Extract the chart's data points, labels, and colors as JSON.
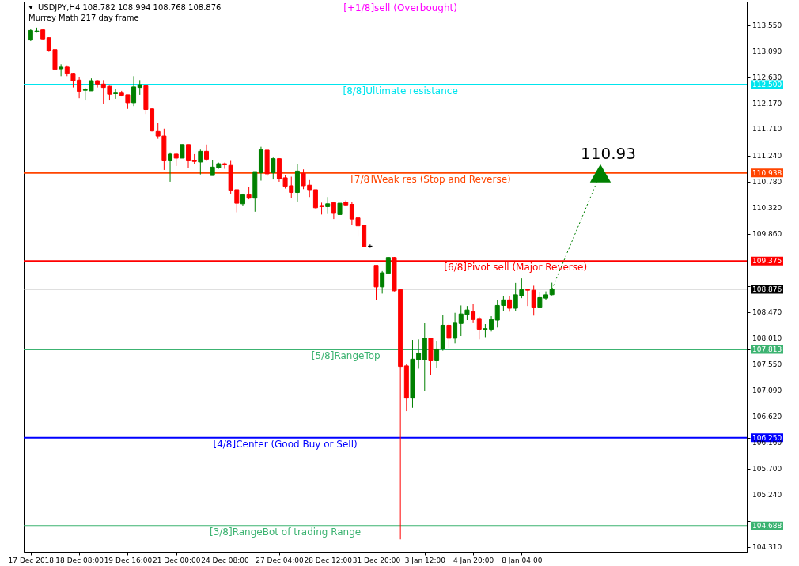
{
  "chart_data": {
    "type": "candlestick",
    "title": "USDJPY,H4  108.782 108.994 108.768 108.876",
    "subtitle": "Murrey Math 217 day frame",
    "categories": [
      "17 Dec 2018",
      null,
      null,
      null,
      null,
      null,
      null,
      null,
      "18 Dec 08:00",
      null,
      null,
      null,
      null,
      null,
      null,
      null,
      "19 Dec 16:00",
      null,
      null,
      null,
      null,
      null,
      null,
      null,
      "21 Dec 00:00",
      null,
      null,
      null,
      null,
      null,
      null,
      null,
      "24 Dec 08:00",
      null,
      null,
      null,
      null,
      null,
      null,
      null,
      null,
      "27 Dec 04:00",
      null,
      null,
      null,
      null,
      null,
      null,
      null,
      "28 Dec 12:00",
      null,
      null,
      null,
      null,
      null,
      null,
      null,
      "31 Dec 20:00",
      null,
      null,
      null,
      null,
      null,
      null,
      null,
      "3 Jan 12:00",
      null,
      null,
      null,
      null,
      null,
      null,
      null,
      "4 Jan 20:00",
      null,
      null,
      null,
      null,
      null,
      null,
      null,
      "8 Jan 04:00",
      null,
      null,
      null,
      null,
      null,
      null,
      null,
      null,
      null,
      null,
      null,
      null,
      null,
      null,
      null,
      null,
      null,
      null,
      null,
      null,
      null,
      null,
      null,
      null,
      null,
      null,
      null,
      null,
      null,
      null,
      null,
      null,
      null,
      null,
      null,
      null
    ],
    "ohlc": [
      [
        113.29,
        113.48,
        113.27,
        113.46
      ],
      [
        113.44,
        113.51,
        113.42,
        113.45
      ],
      [
        113.47,
        113.48,
        113.3,
        113.31
      ],
      [
        113.33,
        113.34,
        113.08,
        113.1
      ],
      [
        113.12,
        113.13,
        112.76,
        112.77
      ],
      [
        112.78,
        112.86,
        112.65,
        112.81
      ],
      [
        112.81,
        112.84,
        112.65,
        112.7
      ],
      [
        112.7,
        112.71,
        112.45,
        112.57
      ],
      [
        112.58,
        112.64,
        112.26,
        112.38
      ],
      [
        112.4,
        112.44,
        112.22,
        112.41
      ],
      [
        112.39,
        112.61,
        112.39,
        112.57
      ],
      [
        112.57,
        112.58,
        112.45,
        112.51
      ],
      [
        112.51,
        112.58,
        112.16,
        112.45
      ],
      [
        112.47,
        112.48,
        112.22,
        112.33
      ],
      [
        112.34,
        112.43,
        112.25,
        112.35
      ],
      [
        112.35,
        112.39,
        112.29,
        112.31
      ],
      [
        112.32,
        112.32,
        112.07,
        112.18
      ],
      [
        112.18,
        112.65,
        112.12,
        112.46
      ],
      [
        112.45,
        112.58,
        112.32,
        112.5
      ],
      [
        112.48,
        112.48,
        111.98,
        112.06
      ],
      [
        112.07,
        112.08,
        111.67,
        111.68
      ],
      [
        111.67,
        111.82,
        111.54,
        111.59
      ],
      [
        111.59,
        111.72,
        110.99,
        111.15
      ],
      [
        111.15,
        111.3,
        110.78,
        111.27
      ],
      [
        111.27,
        111.3,
        111.06,
        111.2
      ],
      [
        111.2,
        111.44,
        111.2,
        111.44
      ],
      [
        111.44,
        111.44,
        111.02,
        111.15
      ],
      [
        111.16,
        111.27,
        111.1,
        111.14
      ],
      [
        111.13,
        111.35,
        110.91,
        111.32
      ],
      [
        111.32,
        111.44,
        111.15,
        111.18
      ],
      [
        110.89,
        111.17,
        110.89,
        111.04
      ],
      [
        111.03,
        111.12,
        111.01,
        111.1
      ],
      [
        111.1,
        111.12,
        111.01,
        111.08
      ],
      [
        111.07,
        111.15,
        110.57,
        110.63
      ],
      [
        110.64,
        110.64,
        110.24,
        110.4
      ],
      [
        110.39,
        110.57,
        110.35,
        110.55
      ],
      [
        110.55,
        110.69,
        110.47,
        110.49
      ],
      [
        110.49,
        110.96,
        110.25,
        110.96
      ],
      [
        110.94,
        111.4,
        110.8,
        111.35
      ],
      [
        111.34,
        111.34,
        110.88,
        110.92
      ],
      [
        110.94,
        111.21,
        110.82,
        111.19
      ],
      [
        111.19,
        111.2,
        110.78,
        110.83
      ],
      [
        110.85,
        110.9,
        110.66,
        110.7
      ],
      [
        110.71,
        110.87,
        110.49,
        110.59
      ],
      [
        110.59,
        111.09,
        110.43,
        110.97
      ],
      [
        110.93,
        111.0,
        110.65,
        110.71
      ],
      [
        110.72,
        110.81,
        110.51,
        110.64
      ],
      [
        110.64,
        110.64,
        110.31,
        110.32
      ],
      [
        110.36,
        110.41,
        110.2,
        110.34
      ],
      [
        110.34,
        110.51,
        110.21,
        110.39
      ],
      [
        110.41,
        110.42,
        110.12,
        110.22
      ],
      [
        110.2,
        110.4,
        110.2,
        110.4
      ],
      [
        110.42,
        110.45,
        110.35,
        110.37
      ],
      [
        110.38,
        110.42,
        110.01,
        110.12
      ],
      [
        110.14,
        110.15,
        109.81,
        110.0
      ],
      [
        110.01,
        110.01,
        109.62,
        109.63
      ],
      [
        109.64,
        109.67,
        109.61,
        109.64
      ],
      [
        109.3,
        109.3,
        108.69,
        108.92
      ],
      [
        108.92,
        109.2,
        108.8,
        109.17
      ],
      [
        109.16,
        109.45,
        109.15,
        109.44
      ],
      [
        109.44,
        109.45,
        108.84,
        108.85
      ],
      [
        108.87,
        108.87,
        104.45,
        107.51
      ],
      [
        107.52,
        107.55,
        106.72,
        106.95
      ],
      [
        106.95,
        107.98,
        106.78,
        107.64
      ],
      [
        107.63,
        107.99,
        107.47,
        107.75
      ],
      [
        107.63,
        108.28,
        107.08,
        108.01
      ],
      [
        108.01,
        108.01,
        107.36,
        107.61
      ],
      [
        107.61,
        107.96,
        107.49,
        107.82
      ],
      [
        107.82,
        108.42,
        107.79,
        108.24
      ],
      [
        108.24,
        108.27,
        107.84,
        108.01
      ],
      [
        108.01,
        108.46,
        107.92,
        108.29
      ],
      [
        108.27,
        108.59,
        108.05,
        108.44
      ],
      [
        108.43,
        108.58,
        108.33,
        108.51
      ],
      [
        108.48,
        108.62,
        108.29,
        108.34
      ],
      [
        108.36,
        108.39,
        107.99,
        108.17
      ],
      [
        108.17,
        108.26,
        108.03,
        108.18
      ],
      [
        108.17,
        108.4,
        108.13,
        108.34
      ],
      [
        108.33,
        108.68,
        108.2,
        108.59
      ],
      [
        108.59,
        108.75,
        108.49,
        108.69
      ],
      [
        108.69,
        108.76,
        108.48,
        108.54
      ],
      [
        108.54,
        108.99,
        108.49,
        108.78
      ],
      [
        108.76,
        109.07,
        108.72,
        108.87
      ],
      [
        108.87,
        108.89,
        108.58,
        108.86
      ],
      [
        108.86,
        108.94,
        108.41,
        108.56
      ],
      [
        108.56,
        108.82,
        108.54,
        108.73
      ],
      [
        108.72,
        108.84,
        108.69,
        108.78
      ],
      [
        108.782,
        108.994,
        108.768,
        108.876
      ],
      null,
      null,
      null,
      null,
      null,
      null,
      null,
      null,
      null,
      null,
      null,
      null,
      null,
      null,
      null,
      null,
      null,
      null,
      null,
      null,
      null,
      null,
      null,
      null,
      null,
      null,
      null,
      null,
      null,
      null,
      null
    ],
    "colors": [
      "#008000",
      "#008000",
      "#ff0000",
      "#ff0000",
      "#ff0000",
      "#008000",
      "#ff0000",
      "#ff0000",
      "#ff0000",
      "#008000",
      "#008000",
      "#ff0000",
      "#ff0000",
      "#ff0000",
      "#008000",
      "#ff0000",
      "#ff0000",
      "#008000",
      "#008000",
      "#ff0000",
      "#ff0000",
      "#ff0000",
      "#ff0000",
      "#008000",
      "#ff0000",
      "#008000",
      "#ff0000",
      "#ff0000",
      "#008000",
      "#ff0000",
      "#008000",
      "#008000",
      "#ff0000",
      "#ff0000",
      "#ff0000",
      "#008000",
      "#ff0000",
      "#008000",
      "#008000",
      "#ff0000",
      "#008000",
      "#ff0000",
      "#ff0000",
      "#ff0000",
      "#008000",
      "#ff0000",
      "#ff0000",
      "#ff0000",
      "#ff0000",
      "#008000",
      "#ff0000",
      "#008000",
      "#ff0000",
      "#ff0000",
      "#ff0000",
      "#ff0000",
      "#000000",
      "#ff0000",
      "#008000",
      "#008000",
      "#ff0000",
      "#ff0000",
      "#ff0000",
      "#008000",
      "#008000",
      "#008000",
      "#ff0000",
      "#008000",
      "#008000",
      "#ff0000",
      "#008000",
      "#008000",
      "#008000",
      "#ff0000",
      "#ff0000",
      "#008000",
      "#008000",
      "#008000",
      "#008000",
      "#ff0000",
      "#008000",
      "#008000",
      "#ff0000",
      "#ff0000",
      "#008000",
      "#008000",
      "#008000",
      null,
      null,
      null,
      null,
      null,
      null,
      null,
      null,
      null,
      null,
      null,
      null,
      null,
      null,
      null,
      null,
      null,
      null,
      null,
      null,
      null,
      null,
      null,
      null,
      null,
      null,
      null,
      null,
      null,
      null,
      null
    ],
    "series": [
      {
        "type": "line",
        "color": "#008000",
        "line_style": "dotted",
        "values": [
          null,
          null,
          null,
          null,
          null,
          null,
          null,
          null,
          null,
          null,
          null,
          null,
          null,
          null,
          null,
          null,
          null,
          null,
          null,
          null,
          null,
          null,
          null,
          null,
          null,
          null,
          null,
          null,
          null,
          null,
          null,
          null,
          null,
          null,
          null,
          null,
          null,
          null,
          null,
          null,
          null,
          null,
          null,
          null,
          null,
          null,
          null,
          null,
          null,
          null,
          null,
          null,
          null,
          null,
          null,
          null,
          null,
          null,
          null,
          null,
          null,
          null,
          null,
          null,
          null,
          null,
          null,
          null,
          null,
          null,
          null,
          null,
          null,
          null,
          null,
          null,
          null,
          null,
          null,
          null,
          null,
          null,
          null,
          null,
          null,
          null,
          108.876,
          null,
          null,
          null,
          null,
          null,
          null,
          null,
          110.93,
          null,
          null,
          null,
          null,
          null,
          null,
          null,
          null,
          null,
          null,
          null,
          null,
          null,
          null,
          null,
          null,
          null,
          null,
          null,
          null,
          null,
          null,
          null
        ]
      }
    ],
    "ylim": [
      104.23,
      113.97
    ],
    "yticks": [
      {
        "value": 113.55,
        "label": "113.550"
      },
      {
        "value": 113.09,
        "label": "113.090"
      },
      {
        "value": 112.63,
        "label": "112.630"
      },
      {
        "value": 112.5,
        "label": "112.500"
      },
      {
        "value": 112.17,
        "label": "112.170"
      },
      {
        "value": 111.71,
        "label": "111.710"
      },
      {
        "value": 111.24,
        "label": "111.240"
      },
      {
        "value": 110.938,
        "label": "110.938"
      },
      {
        "value": 110.78,
        "label": "110.780"
      },
      {
        "value": 110.32,
        "label": "110.320"
      },
      {
        "value": 109.86,
        "label": "109.860"
      },
      {
        "value": 109.375,
        "label": "109.375"
      },
      {
        "value": 108.93,
        "label": null
      },
      {
        "value": 108.876,
        "label": "108.876"
      },
      {
        "value": 108.47,
        "label": "108.470"
      },
      {
        "value": 108.01,
        "label": "108.010"
      },
      {
        "value": 107.813,
        "label": "107.813"
      },
      {
        "value": 107.55,
        "label": "107.550"
      },
      {
        "value": 107.09,
        "label": "107.090"
      },
      {
        "value": 106.62,
        "label": "106.620"
      },
      {
        "value": 106.25,
        "label": "106.250"
      },
      {
        "value": 106.16,
        "label": "106.160"
      },
      {
        "value": 105.7,
        "label": "105.700"
      },
      {
        "value": 105.24,
        "label": "105.240"
      },
      {
        "value": 104.78,
        "label": null
      },
      {
        "value": 104.688,
        "label": "104.688"
      },
      {
        "value": 104.31,
        "label": "104.310"
      }
    ],
    "ref_lines": [
      {
        "axis": "y",
        "value": 112.5,
        "label": "[8/8]Ultimate resistance",
        "color": "#00e5ee"
      },
      {
        "axis": "y",
        "value": 110.938,
        "label": "[7/8]Weak res (Stop and Reverse)",
        "color": "#ff4500"
      },
      {
        "axis": "y",
        "value": 109.375,
        "label": "[6/8]Pivot sell (Major Reverse)",
        "color": "#ff0000"
      },
      {
        "axis": "y",
        "value": 108.876,
        "color": "#c0c0c0"
      },
      {
        "axis": "y",
        "value": 107.813,
        "label": "[5/8]RangeTop",
        "color": "#3cb371"
      },
      {
        "axis": "y",
        "value": 106.25,
        "label": "[4/8]Center (Good Buy or Sell)",
        "color": "#0000ff"
      },
      {
        "axis": "y",
        "value": 104.688,
        "label": "[3/8]RangeBot of trading Range",
        "color": "#3cb371"
      }
    ],
    "annotations": [
      "[+1/8]sell (Overbought)",
      {
        "text": "110.93",
        "y": 110.93
      }
    ]
  }
}
